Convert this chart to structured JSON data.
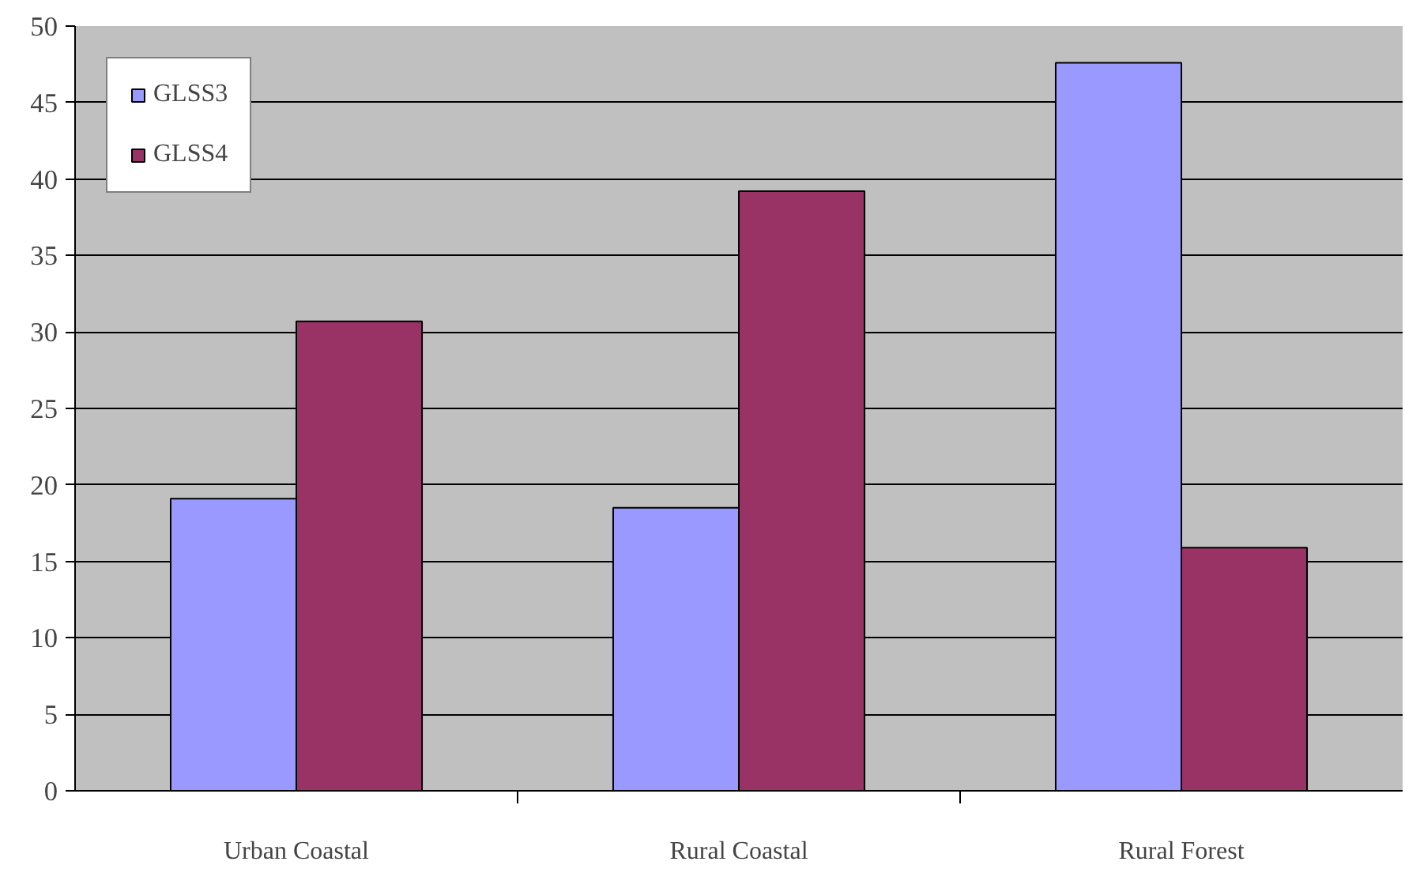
{
  "chart_data": {
    "type": "bar",
    "categories": [
      "Urban Coastal",
      "Rural Coastal",
      "Rural Forest"
    ],
    "series": [
      {
        "name": "GLSS3",
        "color": "#9999ff",
        "values": [
          19.1,
          18.5,
          47.6
        ]
      },
      {
        "name": "GLSS4",
        "color": "#993366",
        "values": [
          30.7,
          39.2,
          15.9
        ]
      }
    ],
    "ylim": [
      0,
      50
    ],
    "yticks": [
      0,
      5,
      10,
      15,
      20,
      25,
      30,
      35,
      40,
      45,
      50
    ],
    "grid": "y",
    "legend": "top left"
  }
}
